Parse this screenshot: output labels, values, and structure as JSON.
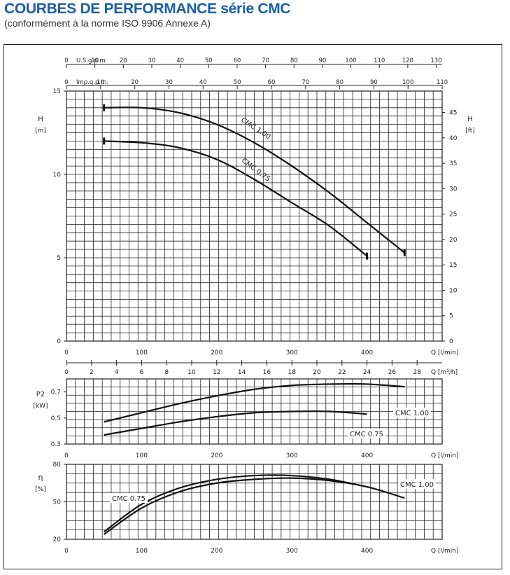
{
  "header": {
    "title": "COURBES DE PERFORMANCE série CMC",
    "subtitle": "(conformément à la norme ISO 9906 Annexe A)"
  },
  "colors": {
    "title": "#1a5ea8",
    "curves": "#111111",
    "grid": "#222222"
  },
  "chart_data": [
    {
      "type": "line",
      "panel": "head",
      "ylabel": "H",
      "yunit": "[m]",
      "y2label": "H",
      "y2unit": "[ft]",
      "xlabel": "Q",
      "xunit": "[l/min]",
      "xlim": [
        0,
        500
      ],
      "ylim": [
        0,
        15
      ],
      "x_ticks": [
        0,
        100,
        200,
        300,
        400
      ],
      "y_ticks": [
        0,
        5,
        10,
        15
      ],
      "y2_ticks": [
        0,
        5,
        10,
        15,
        20,
        25,
        30,
        35,
        40,
        45
      ],
      "top_axis_usgpm": {
        "label": "U.S.g.p.m.",
        "ticks": [
          0,
          10,
          20,
          30,
          40,
          50,
          60,
          70,
          80,
          90,
          100,
          110,
          120,
          130
        ]
      },
      "top_axis_impgpm": {
        "label": "Imp.g.p.m.",
        "ticks": [
          0,
          10,
          20,
          30,
          40,
          50,
          60,
          70,
          80,
          90,
          100,
          110
        ]
      },
      "grid": true,
      "series": [
        {
          "name": "CMC 1.00",
          "label_text": "CMC 1.00",
          "x": [
            50,
            100,
            150,
            200,
            250,
            300,
            350,
            400,
            450
          ],
          "y": [
            14.0,
            14.0,
            13.7,
            13.0,
            11.9,
            10.5,
            8.9,
            7.1,
            5.3
          ]
        },
        {
          "name": "CMC 0.75",
          "label_text": "CMC 0.75",
          "x": [
            50,
            100,
            150,
            200,
            250,
            300,
            350,
            400
          ],
          "y": [
            12.0,
            11.9,
            11.6,
            10.9,
            9.7,
            8.3,
            6.9,
            5.1
          ]
        }
      ]
    },
    {
      "type": "line",
      "panel": "power",
      "ylabel": "P2",
      "yunit": "[kW]",
      "xlabel": "Q",
      "xunit": "[l/min]",
      "xlim": [
        0,
        500
      ],
      "ylim": [
        0.3,
        0.8
      ],
      "x_ticks": [
        0,
        100,
        200,
        300,
        400
      ],
      "y_ticks": [
        0.3,
        0.5,
        0.7
      ],
      "top_axis_m3h": {
        "label": "Q [m3/h]",
        "ticks": [
          0,
          2,
          4,
          6,
          8,
          10,
          12,
          14,
          16,
          18,
          20,
          22,
          24,
          26,
          28
        ]
      },
      "grid": true,
      "series": [
        {
          "name": "CMC 1.00",
          "label_text": "CMC 1.00",
          "x": [
            50,
            100,
            150,
            200,
            250,
            300,
            350,
            400,
            450
          ],
          "y": [
            0.47,
            0.54,
            0.61,
            0.67,
            0.72,
            0.75,
            0.76,
            0.76,
            0.74
          ]
        },
        {
          "name": "CMC 0.75",
          "label_text": "CMC 0.75",
          "x": [
            50,
            100,
            150,
            200,
            250,
            300,
            350,
            400
          ],
          "y": [
            0.37,
            0.42,
            0.47,
            0.51,
            0.54,
            0.55,
            0.55,
            0.53
          ]
        }
      ]
    },
    {
      "type": "line",
      "panel": "efficiency",
      "ylabel": "η",
      "yunit": "[%]",
      "xlabel": "Q",
      "xunit": "[l/min]",
      "xlim": [
        0,
        500
      ],
      "ylim": [
        20,
        80
      ],
      "x_ticks": [
        0,
        100,
        200,
        300,
        400
      ],
      "y_ticks": [
        20,
        50,
        80
      ],
      "grid": true,
      "series": [
        {
          "name": "CMC 1.00",
          "label_text": "CMC 1.00",
          "x": [
            50,
            100,
            150,
            200,
            250,
            300,
            350,
            400,
            450
          ],
          "y": [
            24,
            45,
            58,
            65,
            68,
            69,
            67,
            62,
            53
          ]
        },
        {
          "name": "CMC 0.75",
          "label_text": "CMC 0.75",
          "x": [
            50,
            100,
            150,
            200,
            250,
            300,
            350,
            400
          ],
          "y": [
            26,
            48,
            61,
            68,
            71,
            71,
            68,
            62
          ]
        }
      ]
    }
  ]
}
